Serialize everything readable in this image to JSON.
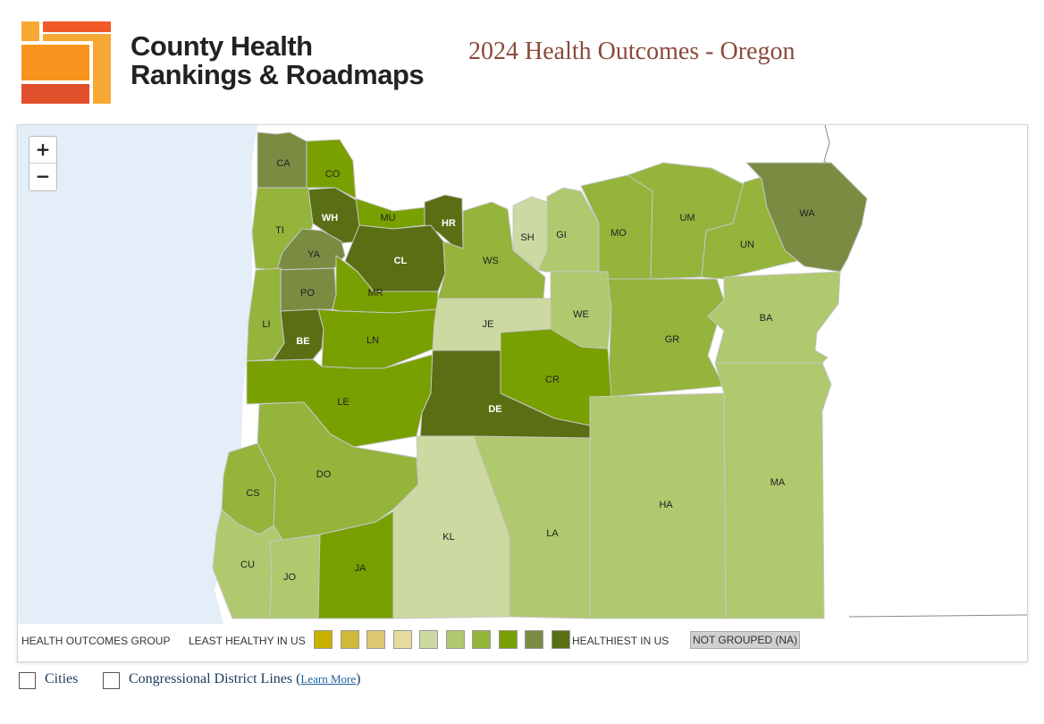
{
  "brand": {
    "line1": "County Health",
    "line2": "Rankings & Roadmaps"
  },
  "page_title": "2024 Health Outcomes - Oregon",
  "map": {
    "zoom_in": "+",
    "zoom_out": "−",
    "counties": [
      {
        "code": "CA",
        "group": 8
      },
      {
        "code": "CO",
        "group": 7
      },
      {
        "code": "TI",
        "group": 6
      },
      {
        "code": "WH",
        "group": 9
      },
      {
        "code": "MU",
        "group": 7
      },
      {
        "code": "HR",
        "group": 9
      },
      {
        "code": "YA",
        "group": 8
      },
      {
        "code": "CL",
        "group": 9
      },
      {
        "code": "WS",
        "group": 6
      },
      {
        "code": "SH",
        "group": 4
      },
      {
        "code": "GI",
        "group": 5
      },
      {
        "code": "MO",
        "group": 6
      },
      {
        "code": "UM",
        "group": 6
      },
      {
        "code": "UN",
        "group": 6
      },
      {
        "code": "WA",
        "group": 8
      },
      {
        "code": "PO",
        "group": 8
      },
      {
        "code": "MR",
        "group": 7
      },
      {
        "code": "LI",
        "group": 6
      },
      {
        "code": "BE",
        "group": 9
      },
      {
        "code": "LN",
        "group": 7
      },
      {
        "code": "JE",
        "group": 4
      },
      {
        "code": "WE",
        "group": 5
      },
      {
        "code": "GR",
        "group": 6
      },
      {
        "code": "BA",
        "group": 5
      },
      {
        "code": "LE",
        "group": 7
      },
      {
        "code": "CR",
        "group": 7
      },
      {
        "code": "DE",
        "group": 9
      },
      {
        "code": "DO",
        "group": 6
      },
      {
        "code": "CS",
        "group": 6
      },
      {
        "code": "KL",
        "group": 4
      },
      {
        "code": "LA",
        "group": 5
      },
      {
        "code": "HA",
        "group": 5
      },
      {
        "code": "MA",
        "group": 5
      },
      {
        "code": "CU",
        "group": 5
      },
      {
        "code": "JO",
        "group": 5
      },
      {
        "code": "JA",
        "group": 7
      }
    ]
  },
  "legend": {
    "title": "HEALTH OUTCOMES GROUP",
    "least": "LEAST HEALTHY IN US",
    "healthiest": "HEALTHIEST IN US",
    "not_grouped": "NOT GROUPED (NA)",
    "colors": [
      "#c8b000",
      "#d2b93a",
      "#dcc86e",
      "#e6dca0",
      "#ccd9a0",
      "#b0c86e",
      "#94b43c",
      "#78a000",
      "#7a8c42",
      "#5a6e14"
    ],
    "na_color": "#d0d0d0"
  },
  "options": {
    "cities_label": "Cities",
    "districts_label": "Congressional District Lines",
    "learn_more": "Learn More"
  }
}
